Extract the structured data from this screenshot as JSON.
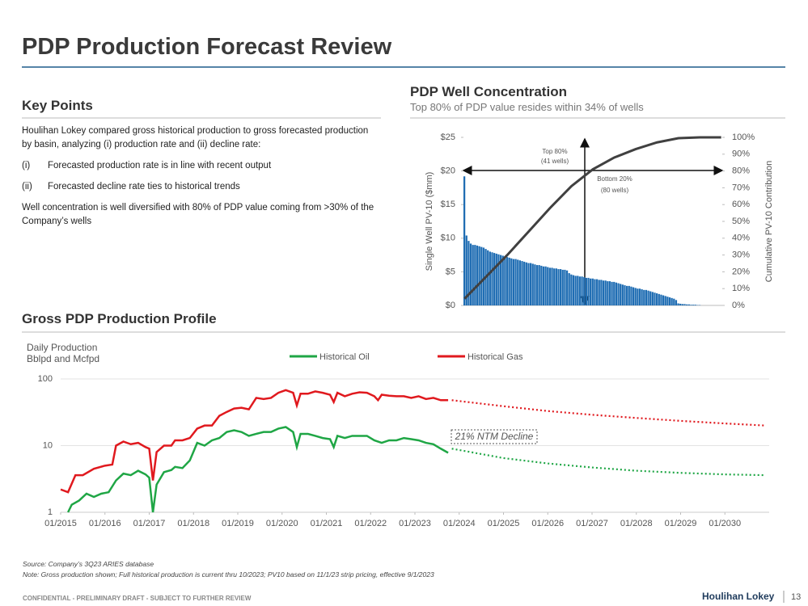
{
  "header": {
    "title": "PDP Production Forecast Review"
  },
  "key_points": {
    "heading": "Key Points",
    "intro": "Houlihan Lokey compared gross historical production to gross forecasted production by basin, analyzing (i) production rate and (ii) decline rate:",
    "items": [
      {
        "marker": "(i)",
        "text": "Forecasted production rate is in line with recent output"
      },
      {
        "marker": "(ii)",
        "text": "Forecasted decline rate ties to historical trends"
      }
    ],
    "closing": "Well concentration is well diversified with 80% of PDP value coming from >30% of the Company’s wells"
  },
  "chart_data": [
    {
      "type": "bar",
      "title": "PDP Well Concentration",
      "subtitle": "Top 80% of PDP value resides within 34% of wells",
      "ylabel": "Single Well PV-10 ($mm)",
      "y2label": "Cumulative PV-10 Contribution",
      "ylim": [
        0,
        25
      ],
      "yticks": [
        {
          "value": 0,
          "label": "$0"
        },
        {
          "value": 5,
          "label": "$5"
        },
        {
          "value": 10,
          "label": "$10"
        },
        {
          "value": 15,
          "label": "$15"
        },
        {
          "value": 20,
          "label": "$20"
        },
        {
          "value": 25,
          "label": "$25"
        }
      ],
      "y2lim": [
        0,
        100
      ],
      "y2ticks": [
        {
          "value": 0,
          "label": "0%"
        },
        {
          "value": 10,
          "label": "10%"
        },
        {
          "value": 20,
          "label": "20%"
        },
        {
          "value": 30,
          "label": "30%"
        },
        {
          "value": 40,
          "label": "40%"
        },
        {
          "value": 50,
          "label": "50%"
        },
        {
          "value": 60,
          "label": "60%"
        },
        {
          "value": 70,
          "label": "70%"
        },
        {
          "value": 80,
          "label": "80%"
        },
        {
          "value": 90,
          "label": "90%"
        },
        {
          "value": 100,
          "label": "100%"
        }
      ],
      "grid": false,
      "series": [
        {
          "type": "bar",
          "color": "#1f6db3",
          "values": [
            19.2,
            10.4,
            9.6,
            9.2,
            9.0,
            9.0,
            8.9,
            8.8,
            8.7,
            8.6,
            8.4,
            8.2,
            8.0,
            7.9,
            7.8,
            7.7,
            7.6,
            7.5,
            7.4,
            7.3,
            7.2,
            7.1,
            7.0,
            6.9,
            6.9,
            6.8,
            6.7,
            6.6,
            6.5,
            6.4,
            6.3,
            6.3,
            6.2,
            6.1,
            6.0,
            6.0,
            5.9,
            5.8,
            5.8,
            5.7,
            5.6,
            5.6,
            5.5,
            5.5,
            5.4,
            5.4,
            5.3,
            5.3,
            5.2,
            4.8,
            4.6,
            4.5,
            4.4,
            4.4,
            4.3,
            4.3,
            4.2,
            4.1,
            4.1,
            4.0,
            4.0,
            3.9,
            3.9,
            3.8,
            3.8,
            3.7,
            3.7,
            3.6,
            3.6,
            3.5,
            3.5,
            3.4,
            3.3,
            3.2,
            3.1,
            3.0,
            2.9,
            2.9,
            2.8,
            2.7,
            2.6,
            2.5,
            2.5,
            2.4,
            2.3,
            2.3,
            2.2,
            2.1,
            2.0,
            1.9,
            1.8,
            1.7,
            1.6,
            1.5,
            1.4,
            1.3,
            1.2,
            1.1,
            1.0,
            0.8,
            0.3,
            0.25,
            0.2,
            0.2,
            0.15,
            0.15,
            0.1,
            0.1,
            0.1,
            0.05,
            0.05,
            0,
            0,
            0,
            0,
            0,
            0,
            0,
            0,
            0,
            0
          ]
        },
        {
          "type": "line",
          "axis": "y2",
          "color": "#404040",
          "x": [
            0,
            10,
            20,
            30,
            40,
            50,
            60,
            70,
            80,
            90,
            100,
            110,
            120
          ],
          "values": [
            4,
            17,
            30,
            44,
            58,
            71,
            81,
            88,
            93,
            97,
            99.5,
            100,
            100
          ]
        }
      ],
      "annotations": [
        "Top 80%",
        "(41 wells)",
        "Bottom 20%",
        "(80 wells)"
      ]
    },
    {
      "type": "line",
      "title": "Gross PDP Production Profile",
      "ylabel": [
        "Daily Production",
        "Bblpd and Mcfpd"
      ],
      "log_scale": true,
      "ylim": [
        1,
        100
      ],
      "yticks": [
        1,
        10,
        100
      ],
      "xlim": [
        "01/2015",
        "01/2031"
      ],
      "xticks": [
        "01/2015",
        "01/2016",
        "01/2017",
        "01/2018",
        "01/2019",
        "01/2020",
        "01/2021",
        "01/2022",
        "01/2023",
        "01/2024",
        "01/2025",
        "01/2026",
        "01/2027",
        "01/2028",
        "01/2029",
        "01/2030"
      ],
      "grid": true,
      "legend": "top",
      "series": [
        {
          "name": "Historical Oil",
          "color": "#1fa645",
          "x": [
            "03/2015",
            "04/2015",
            "06/2015",
            "08/2015",
            "10/2015",
            "12/2015",
            "02/2016",
            "04/2016",
            "06/2016",
            "08/2016",
            "10/2016",
            "12/2016",
            "01/2017",
            "02/2017",
            "03/2017",
            "05/2017",
            "07/2017",
            "08/2017",
            "10/2017",
            "12/2017",
            "02/2018",
            "04/2018",
            "06/2018",
            "08/2018",
            "10/2018",
            "12/2018",
            "02/2019",
            "04/2019",
            "06/2019",
            "08/2019",
            "10/2019",
            "12/2019",
            "02/2020",
            "04/2020",
            "05/2020",
            "06/2020",
            "08/2020",
            "10/2020",
            "12/2020",
            "02/2021",
            "03/2021",
            "04/2021",
            "06/2021",
            "08/2021",
            "10/2021",
            "12/2021",
            "02/2022",
            "04/2022",
            "06/2022",
            "08/2022",
            "10/2022",
            "12/2022",
            "02/2023",
            "04/2023",
            "06/2023",
            "08/2023",
            "10/2023"
          ],
          "values": [
            1.0,
            1.3,
            1.5,
            1.9,
            1.7,
            1.9,
            2.0,
            3.0,
            3.8,
            3.6,
            4.2,
            3.7,
            3.3,
            1.0,
            2.6,
            4.0,
            4.3,
            4.8,
            4.6,
            6,
            11,
            10,
            12,
            13,
            16,
            17,
            16,
            14,
            15,
            16,
            16,
            18,
            19,
            16,
            9.5,
            15,
            15,
            14,
            13,
            12.5,
            9.5,
            14,
            13,
            14,
            14,
            14,
            12,
            11,
            12,
            12,
            13,
            12.5,
            12,
            11,
            10.5,
            9,
            7.8
          ]
        },
        {
          "name": "Historical Gas",
          "color": "#e0191e",
          "x": [
            "01/2015",
            "03/2015",
            "05/2015",
            "07/2015",
            "10/2015",
            "01/2016",
            "03/2016",
            "04/2016",
            "06/2016",
            "08/2016",
            "10/2016",
            "12/2016",
            "01/2017",
            "02/2017",
            "03/2017",
            "05/2017",
            "07/2017",
            "08/2017",
            "10/2017",
            "12/2017",
            "02/2018",
            "04/2018",
            "06/2018",
            "08/2018",
            "10/2018",
            "12/2018",
            "02/2019",
            "04/2019",
            "06/2019",
            "08/2019",
            "10/2019",
            "12/2019",
            "02/2020",
            "04/2020",
            "05/2020",
            "06/2020",
            "08/2020",
            "10/2020",
            "12/2020",
            "02/2021",
            "03/2021",
            "04/2021",
            "06/2021",
            "08/2021",
            "10/2021",
            "12/2021",
            "02/2022",
            "03/2022",
            "04/2022",
            "06/2022",
            "08/2022",
            "10/2022",
            "12/2022",
            "02/2023",
            "04/2023",
            "06/2023",
            "08/2023",
            "10/2023"
          ],
          "values": [
            2.2,
            2.0,
            3.6,
            3.6,
            4.5,
            5,
            5.2,
            10,
            11.5,
            10.5,
            11,
            9.5,
            9,
            3,
            8,
            10,
            10,
            12,
            12,
            13,
            18,
            20,
            20,
            28,
            32,
            36,
            37,
            35,
            52,
            50,
            52,
            62,
            68,
            62,
            40,
            60,
            60,
            65,
            62,
            58,
            45,
            62,
            55,
            60,
            63,
            62,
            55,
            48,
            58,
            56,
            55,
            55,
            52,
            55,
            50,
            52,
            48,
            48
          ]
        }
      ],
      "forecast_series": [
        {
          "color": "#1fa645",
          "x": [
            "11/2023",
            "01/2025",
            "01/2026",
            "01/2027",
            "01/2028",
            "01/2029",
            "01/2030",
            "12/2030"
          ],
          "values": [
            9,
            6.5,
            5.4,
            4.7,
            4.2,
            3.9,
            3.7,
            3.6
          ]
        },
        {
          "color": "#e0191e",
          "x": [
            "11/2023",
            "01/2025",
            "01/2026",
            "01/2027",
            "01/2028",
            "01/2029",
            "01/2030",
            "12/2030"
          ],
          "values": [
            48,
            39,
            33,
            29,
            26,
            23.5,
            21.5,
            20
          ]
        }
      ],
      "annotations": [
        "21% NTM Decline"
      ]
    }
  ],
  "footnotes": [
    "Source: Company’s 3Q23 ARIES database",
    "Note: Gross production shown; Full historical production is current thru 10/2023; PV10 based on 11/1/23 strip pricing, effective 9/1/2023"
  ],
  "footer": {
    "confidential": "CONFIDENTIAL - PRELIMINARY DRAFT - SUBJECT TO FURTHER REVIEW",
    "brand": "Houlihan Lokey",
    "page": "13"
  }
}
